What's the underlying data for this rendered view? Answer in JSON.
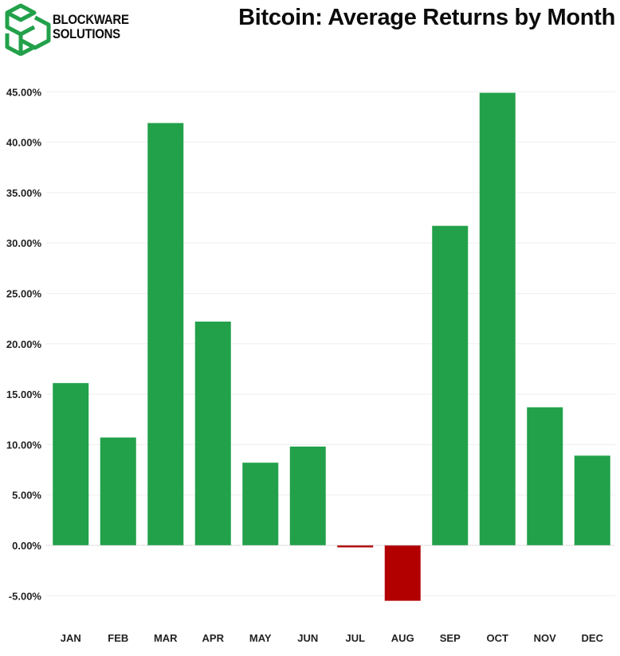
{
  "brand": {
    "line1": "BLOCKWARE",
    "line2": "SOLUTIONS"
  },
  "colors": {
    "positive": "#22a14a",
    "negative": "#b20000",
    "grid": "#eeeeee"
  },
  "chart_data": {
    "type": "bar",
    "title": "Bitcoin: Average Returns by Month",
    "xlabel": "",
    "ylabel": "",
    "categories": [
      "JAN",
      "FEB",
      "MAR",
      "APR",
      "MAY",
      "JUN",
      "JUL",
      "AUG",
      "SEP",
      "OCT",
      "NOV",
      "DEC"
    ],
    "values": [
      16.1,
      10.7,
      41.9,
      22.2,
      8.2,
      9.8,
      -0.2,
      -5.5,
      31.7,
      44.9,
      13.7,
      8.9
    ],
    "value_format": "percent",
    "ylim": [
      -8,
      46
    ],
    "yticks": [
      "45.00%",
      "40.00%",
      "35.00%",
      "30.00%",
      "25.00%",
      "20.00%",
      "15.00%",
      "10.00%",
      "5.00%",
      "0.00%",
      "-5.00%"
    ],
    "grid": true,
    "legend": "none"
  }
}
